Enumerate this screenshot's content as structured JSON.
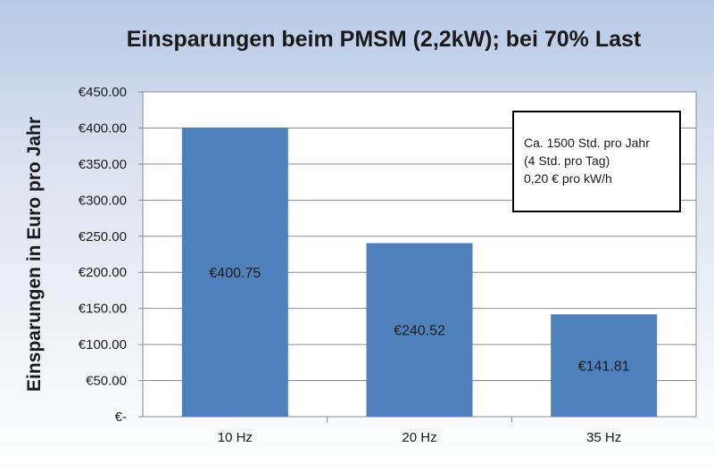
{
  "chart_data": {
    "type": "bar",
    "title": "Einsparungen beim PMSM (2,2kW); bei 70% Last",
    "xlabel": "",
    "ylabel": "Einsparungen in Euro pro Jahr",
    "categories": [
      "10 Hz",
      "20 Hz",
      "35 Hz"
    ],
    "values": [
      400.75,
      240.52,
      141.81
    ],
    "data_labels": [
      "€400.75",
      "€240.52",
      "€141.81"
    ],
    "ylim": [
      0,
      450
    ],
    "yticks": [
      0,
      50,
      100,
      150,
      200,
      250,
      300,
      350,
      400,
      450
    ],
    "ytick_labels": [
      "€-",
      "€50.00",
      "€100.00",
      "€150.00",
      "€200.00",
      "€250.00",
      "€300.00",
      "€350.00",
      "€400.00",
      "€450.00"
    ],
    "grid": true,
    "legend": "none",
    "bar_color": "#4f81bd",
    "annotation": {
      "lines": [
        "Ca. 1500 Std. pro Jahr",
        "(4 Std. pro Tag)",
        "0,20 € pro kW/h"
      ],
      "placement": "top-right"
    }
  }
}
